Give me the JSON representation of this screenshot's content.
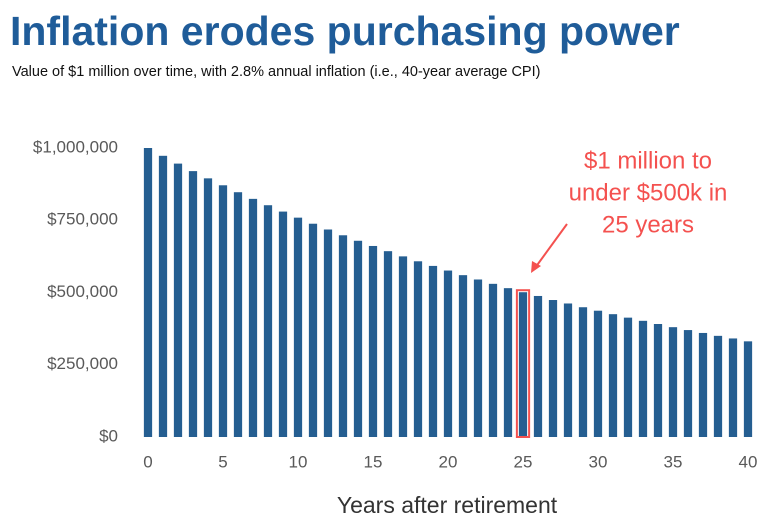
{
  "chart_data": {
    "type": "bar",
    "title": "Inflation erodes purchasing power",
    "subtitle": "Value of $1 million over time, with 2.8% annual inflation (i.e., 40-year average CPI)",
    "x_label": "Years after retirement",
    "x": [
      0,
      1,
      2,
      3,
      4,
      5,
      6,
      7,
      8,
      9,
      10,
      11,
      12,
      13,
      14,
      15,
      16,
      17,
      18,
      19,
      20,
      21,
      22,
      23,
      24,
      25,
      26,
      27,
      28,
      29,
      30,
      31,
      32,
      33,
      34,
      35,
      36,
      37,
      38,
      39,
      40
    ],
    "values": [
      1000000,
      973000,
      946000,
      920000,
      895000,
      871000,
      847000,
      824000,
      802000,
      780000,
      759000,
      738000,
      718000,
      698000,
      679000,
      661000,
      643000,
      625000,
      608000,
      592000,
      576000,
      560000,
      545000,
      530000,
      515000,
      501000,
      488000,
      474000,
      462000,
      449000,
      437000,
      425000,
      413000,
      402000,
      391000,
      380000,
      370000,
      360000,
      350000,
      341000,
      331000
    ],
    "color": "#255e91",
    "xlim": [
      0,
      40
    ],
    "xticks": [
      0,
      5,
      10,
      15,
      20,
      25,
      30,
      35,
      40
    ],
    "ylim": [
      0,
      1000000
    ],
    "yticks": [
      {
        "value": 0,
        "label": "$0"
      },
      {
        "value": 250000,
        "label": "$250,000"
      },
      {
        "value": 500000,
        "label": "$500,000"
      },
      {
        "value": 750000,
        "label": "$750,000"
      },
      {
        "value": 1000000,
        "label": "$1,000,000"
      }
    ],
    "highlight_x": 25,
    "highlight_color": "#f4514f",
    "annotation": [
      "$1 million to",
      "under $500k in",
      "25 years"
    ]
  }
}
